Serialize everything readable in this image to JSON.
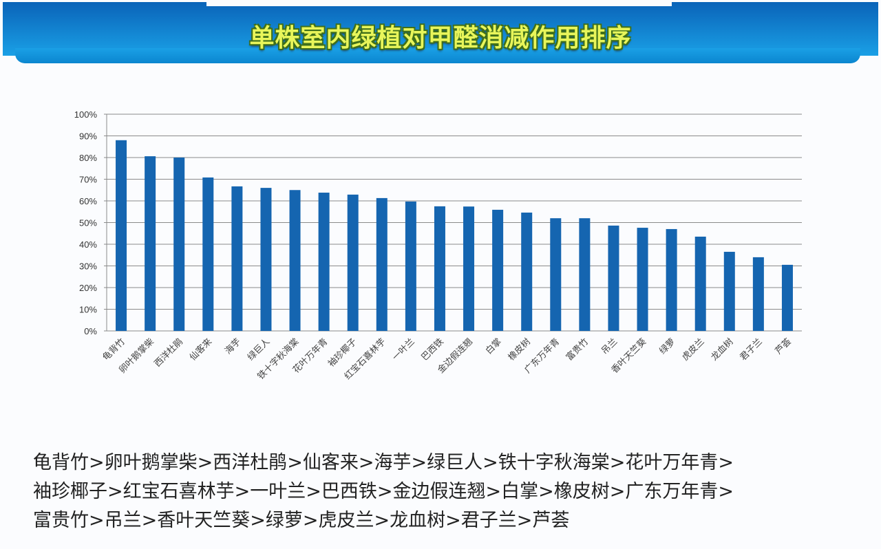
{
  "header": {
    "title": "单株室内绿植对甲醛消减作用排序"
  },
  "chart_data": {
    "type": "bar",
    "title": "",
    "xlabel": "",
    "ylabel": "",
    "ylim": [
      0,
      100
    ],
    "yticks": [
      "0%",
      "10%",
      "20%",
      "30%",
      "40%",
      "50%",
      "60%",
      "70%",
      "80%",
      "90%",
      "100%"
    ],
    "grid": true,
    "bar_color": "#1565b0",
    "categories": [
      "龟背竹",
      "卵叶鹅掌柴",
      "西洋杜鹃",
      "仙客来",
      "海芋",
      "绿巨人",
      "铁十字秋海棠",
      "花叶万年青",
      "袖珍椰子",
      "红宝石喜林芋",
      "一叶兰",
      "巴西铁",
      "金边假连翘",
      "白掌",
      "橡皮树",
      "广东万年青",
      "富贵竹",
      "吊兰",
      "香叶天竺葵",
      "绿萝",
      "虎皮兰",
      "龙血树",
      "君子兰",
      "芦荟"
    ],
    "values": [
      88,
      80.6,
      80,
      70.8,
      66.7,
      66,
      65,
      63.8,
      62.9,
      61.3,
      59.7,
      57.5,
      57.4,
      55.9,
      54.6,
      52,
      52,
      48.6,
      47.6,
      47,
      43.5,
      36.5,
      34,
      30.5
    ]
  },
  "ranking": {
    "lines": [
      "龟背竹>卵叶鹅掌柴>西洋杜鹃>仙客来>海芋>绿巨人>铁十字秋海棠>花叶万年青>",
      "袖珍椰子>红宝石喜林芋>一叶兰>巴西铁>金边假连翘>白掌>橡皮树>广东万年青>",
      "富贵竹>吊兰>香叶天竺葵>绿萝>虎皮兰>龙血树>君子兰>芦荟"
    ]
  }
}
